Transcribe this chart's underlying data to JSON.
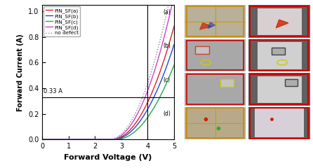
{
  "xlabel": "Forward Voltage (V)",
  "ylabel": "Forward Current (A)",
  "xlim": [
    0,
    5
  ],
  "ylim": [
    0.0,
    1.05
  ],
  "yticks": [
    0.0,
    0.2,
    0.4,
    0.6,
    0.8,
    1.0
  ],
  "xticks": [
    0,
    1,
    2,
    3,
    4,
    5
  ],
  "hline_y": 0.33,
  "vline_x": 4.0,
  "hline_label": "0.33 A",
  "legend_entries": [
    "PiN_SF(a)",
    "PiN_SF(b)",
    "PiN_SF(c)",
    "PiN_SF(d)",
    "no defect"
  ],
  "line_colors": [
    "#dd2222",
    "#2244dd",
    "#22aa44",
    "#cc44cc",
    "#888888"
  ],
  "line_styles": [
    "-",
    "-",
    "-",
    "-",
    ":"
  ],
  "threshold_voltage": 2.65,
  "v_max": 5.0,
  "curve_params": [
    {
      "vth": 2.65,
      "scale": 0.16,
      "power": 2.0
    },
    {
      "vth": 2.7,
      "scale": 0.14,
      "power": 2.0
    },
    {
      "vth": 2.8,
      "scale": 0.12,
      "power": 2.0
    },
    {
      "vth": 2.6,
      "scale": 0.195,
      "power": 2.0
    },
    {
      "vth": 2.55,
      "scale": 0.21,
      "power": 2.0
    }
  ],
  "background_color": "#ffffff",
  "row_labels": [
    "(a)",
    "(b)",
    "(c)",
    "(d)"
  ],
  "left_bg_colors": [
    "#b8b098",
    "#a8a8a8",
    "#a8a8a8",
    "#b8aa88"
  ],
  "right_bg_colors": [
    "#909090",
    "#909090",
    "#909090",
    "#b89898"
  ],
  "right_bright_colors": [
    "#d8d0d0",
    "#d0d0d0",
    "#d0d0d0",
    "#d8d0d8"
  ],
  "border_colors_left": [
    "#cc8800",
    "#cc0000",
    "#cc0000",
    "#cc8800"
  ],
  "border_colors_right": [
    "#cc0000",
    "#cc0000",
    "#cc0000",
    "#cc0000"
  ]
}
